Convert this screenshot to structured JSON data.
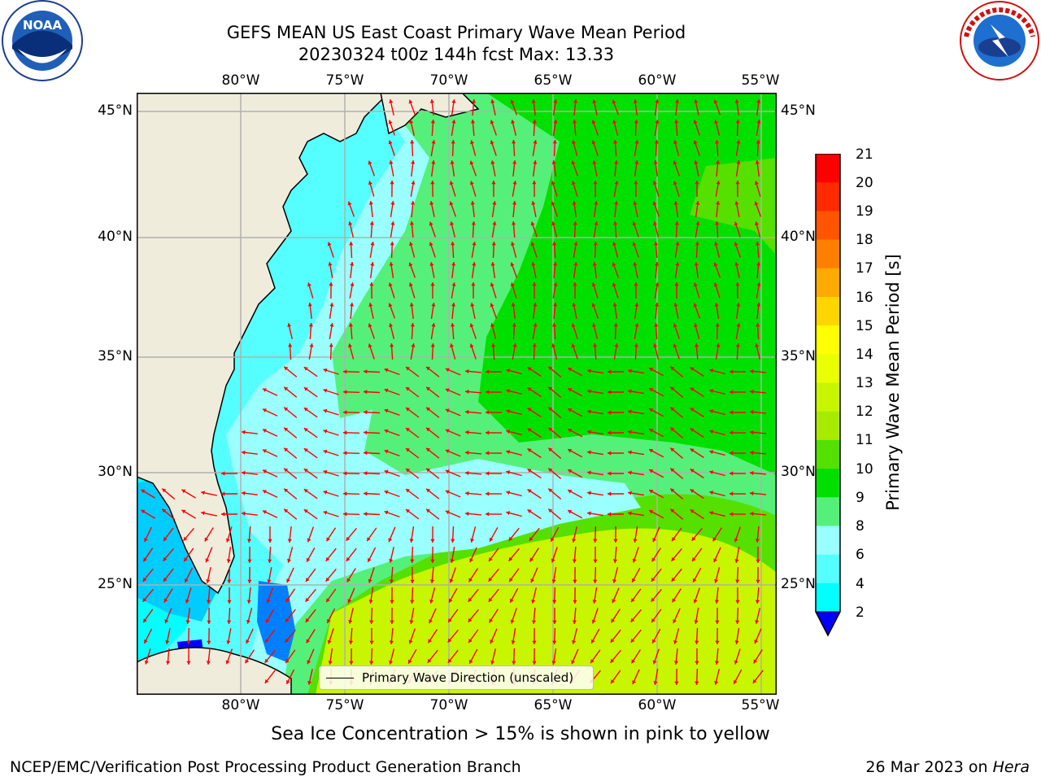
{
  "title": {
    "line1": "GEFS MEAN US East Coast Primary Wave Mean Period",
    "line2": "20230324 t00z 144h fcst   Max: 13.33"
  },
  "logos": {
    "left": {
      "icon": "noaa-logo",
      "text": "NOAA",
      "ring_text": "NATIONAL OCEANIC AND ATMOSPHERIC ADMINISTRATION · U.S. DEPARTMENT OF COMMERCE"
    },
    "right": {
      "icon": "nws-logo",
      "ring_text": "NATIONAL WEATHER SERVICE"
    }
  },
  "map": {
    "lon_labels": [
      "80°W",
      "75°W",
      "70°W",
      "65°W",
      "60°W",
      "55°W"
    ],
    "lat_labels": [
      "45°N",
      "40°N",
      "35°N",
      "30°N",
      "25°N"
    ],
    "lat_labels_right": [
      "45°N",
      "40°N",
      "35°N",
      "30°N",
      "25°N"
    ],
    "legend_label": "Primary Wave Direction (unscaled)",
    "colors": {
      "land": "#efecdc",
      "arrow": "#ff0000",
      "coast": "#000000",
      "grid": "#b0b0b0"
    }
  },
  "colorbar": {
    "label": "Primary Wave Mean Period [s]",
    "ticks": [
      "21",
      "20",
      "19",
      "18",
      "17",
      "16",
      "15",
      "14",
      "13",
      "12",
      "11",
      "10",
      "9",
      "8",
      "6",
      "4",
      "2"
    ],
    "colors": [
      "#ff0000",
      "#ff2a00",
      "#ff5500",
      "#ff8000",
      "#ffaa00",
      "#ffd500",
      "#ffff00",
      "#eaff00",
      "#c8f500",
      "#a8eb00",
      "#55e000",
      "#00e000",
      "#55f07a",
      "#99ffff",
      "#55ffff",
      "#00ffff",
      "#00ccff",
      "#0080ff",
      "#0000ff"
    ]
  },
  "ice_note": "Sea Ice Concentration > 15% is shown in pink to yellow",
  "footer": {
    "left": "NCEP/EMC/Verification Post Processing Product Generation Branch",
    "right_date": "26 Mar 2023 on ",
    "right_host": "Hera"
  }
}
